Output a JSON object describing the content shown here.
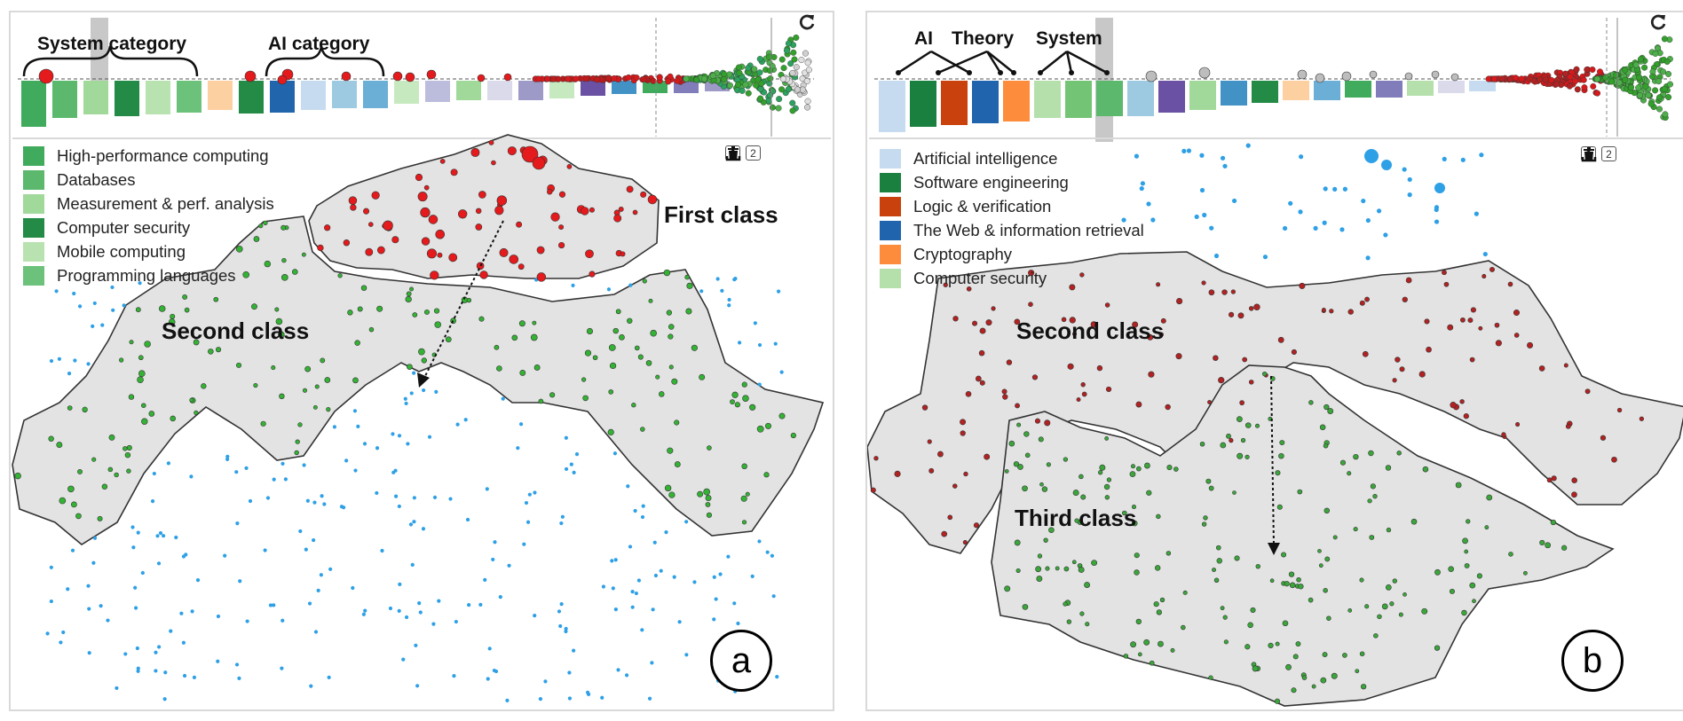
{
  "panel_a": {
    "label": "a",
    "annotations": {
      "system_category": "System category",
      "ai_category": "AI category",
      "first_class": "First class",
      "second_class": "Second class"
    },
    "legend": [
      {
        "label": "High-performance computing",
        "color": "#41ab5d"
      },
      {
        "label": "Databases",
        "color": "#5bb86d"
      },
      {
        "label": "Measurement & perf. analysis",
        "color": "#a1d99b"
      },
      {
        "label": "Computer security",
        "color": "#238b45"
      },
      {
        "label": "Mobile computing",
        "color": "#b8e3b0"
      },
      {
        "label": "Programming languages",
        "color": "#6cc27b"
      }
    ],
    "toolbar": {
      "btn1": "1",
      "btn2": "2",
      "delete_icon": "trash-icon",
      "export_icon": "download-icon"
    }
  },
  "panel_b": {
    "label": "b",
    "annotations": {
      "ai": "AI",
      "theory": "Theory",
      "system": "System",
      "second_class": "Second class",
      "third_class": "Third class"
    },
    "legend": [
      {
        "label": "Artificial intelligence",
        "color": "#c6dbef"
      },
      {
        "label": "Software engineering",
        "color": "#1a8040"
      },
      {
        "label": "Logic & verification",
        "color": "#c9410c"
      },
      {
        "label": "The Web & information retrieval",
        "color": "#1f64ad"
      },
      {
        "label": "Cryptography",
        "color": "#fd8d3c"
      },
      {
        "label": "Computer security",
        "color": "#b5e0ac"
      }
    ],
    "toolbar": {
      "btn1": "1",
      "btn2": "2",
      "delete_icon": "trash-icon",
      "export_icon": "download-icon"
    }
  },
  "colors": {
    "first_class_dots": "#e41a1c",
    "second_class_dots_a": "#33b233",
    "blue_dots": "#2ea0e6",
    "second_class_dots_b": "#b22222",
    "third_class_dots_b": "#3aa63a",
    "region_fill": "#e3e3e3"
  }
}
